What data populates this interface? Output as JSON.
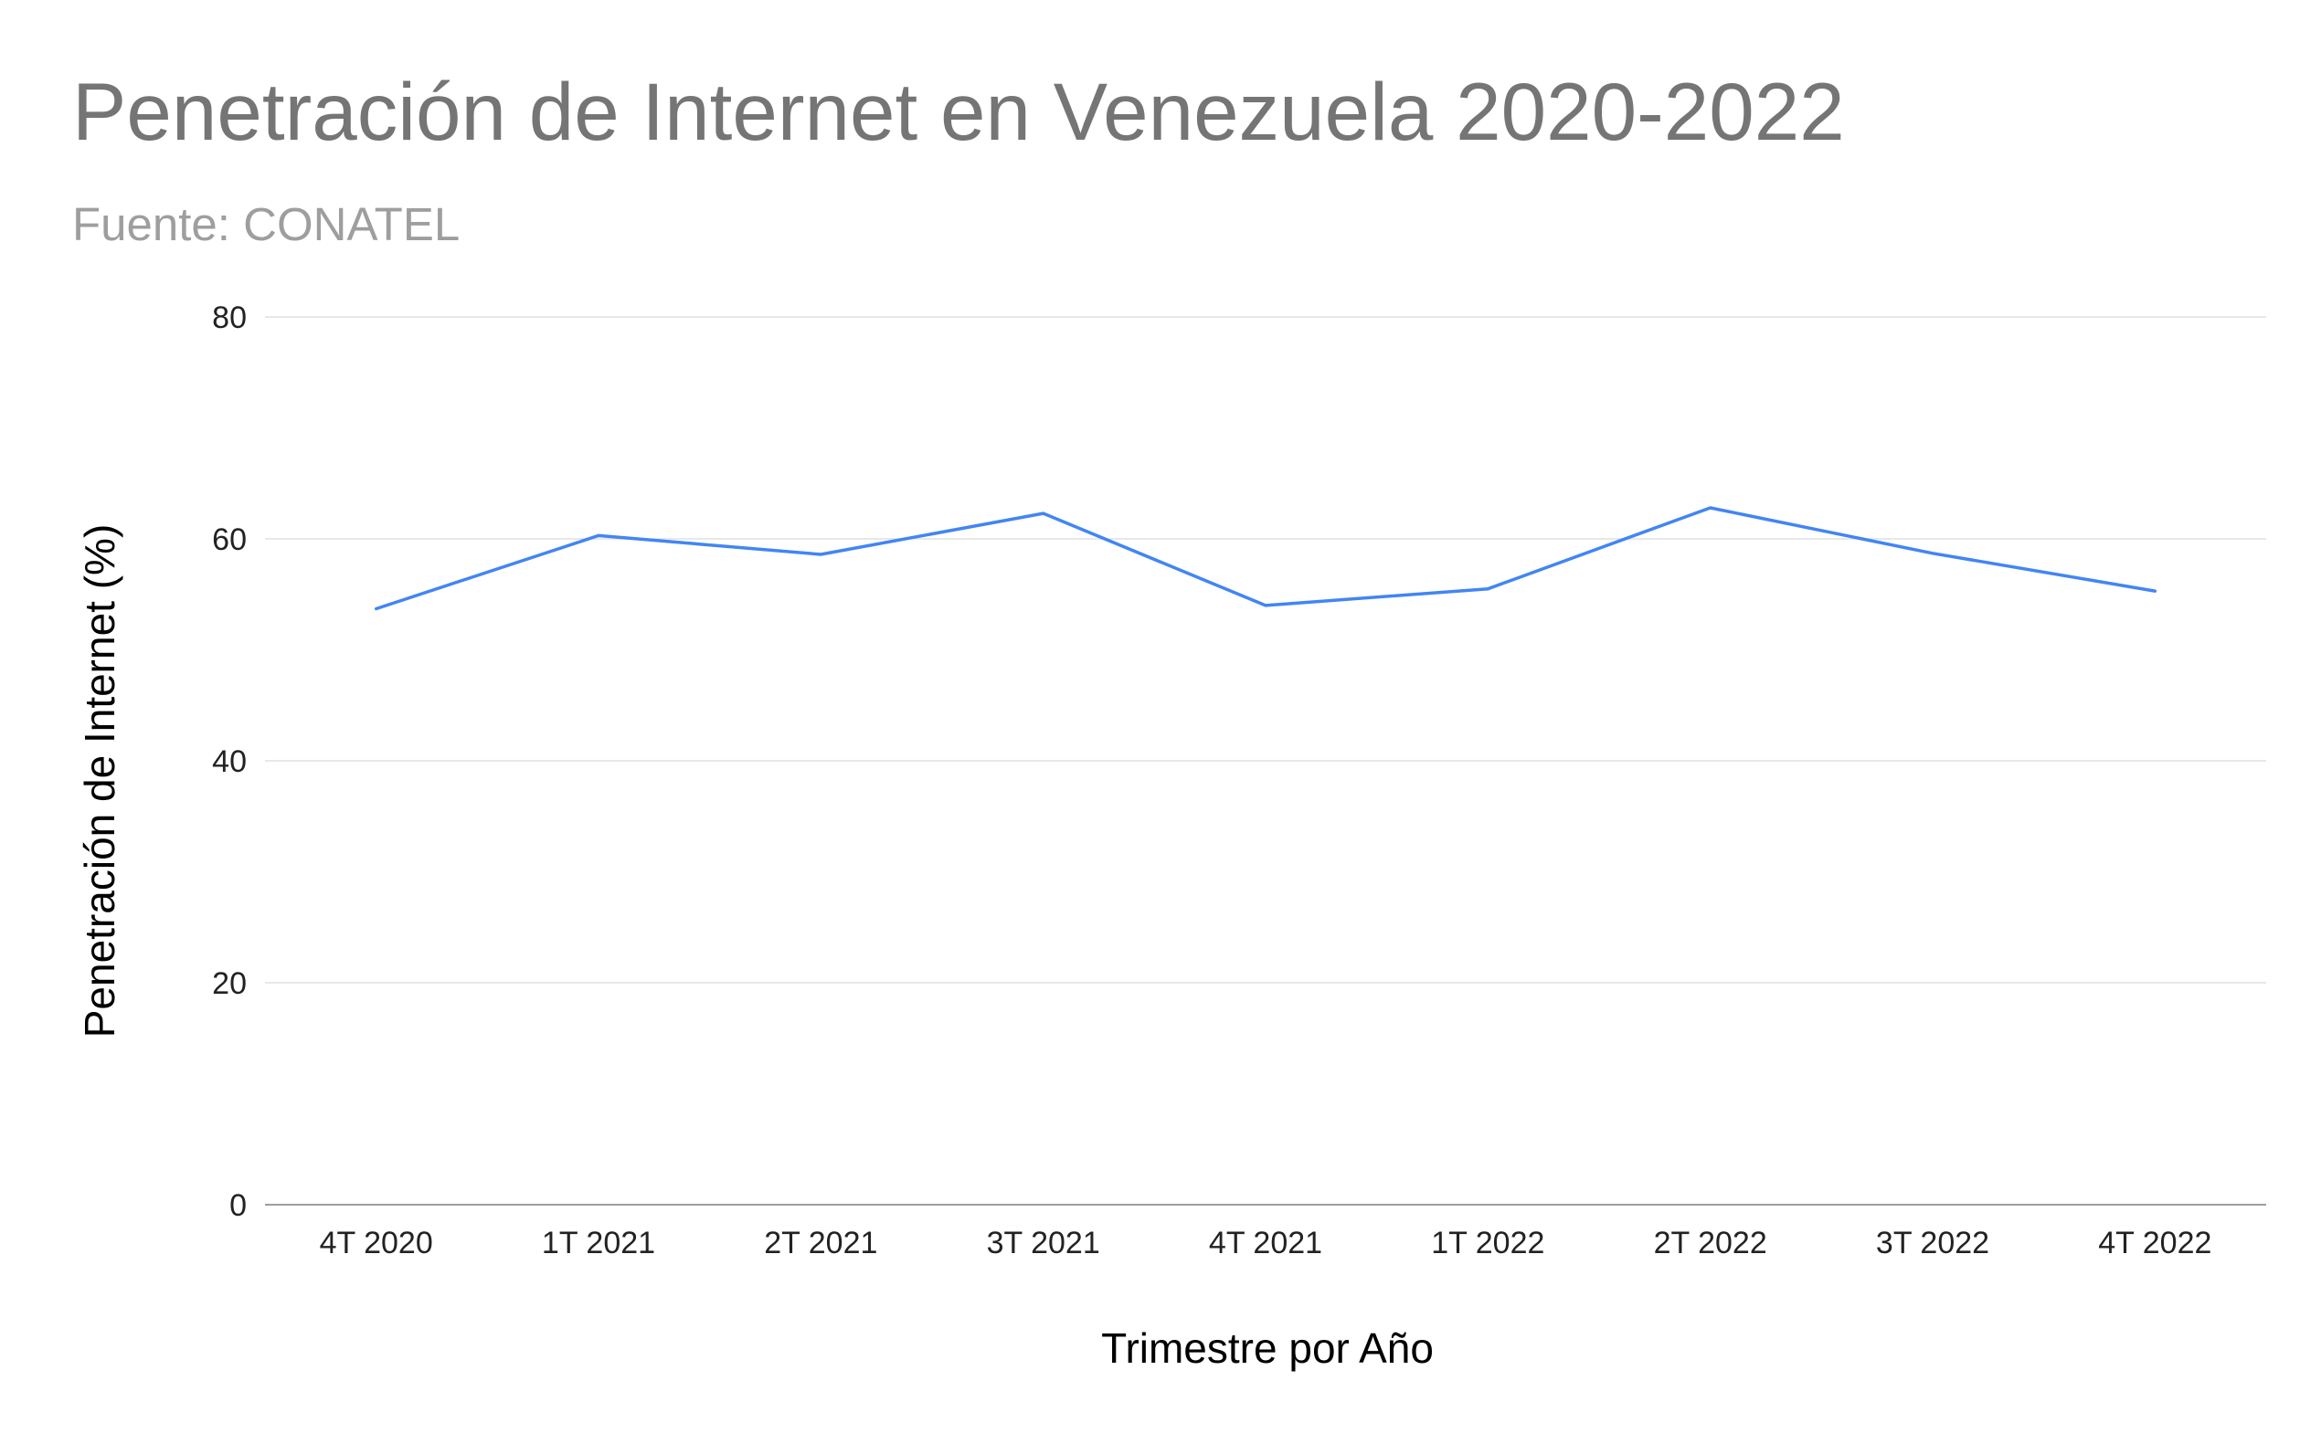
{
  "chart_data": {
    "type": "line",
    "title": "Penetración de Internet en Venezuela 2020-2022",
    "subtitle": "Fuente: CONATEL",
    "xlabel": "Trimestre por Año",
    "ylabel": "Penetración de Internet (%)",
    "categories": [
      "4T 2020",
      "1T 2021",
      "2T 2021",
      "3T 2021",
      "4T 2021",
      "1T 2022",
      "2T 2022",
      "3T 2022",
      "4T 2022"
    ],
    "series": [
      {
        "values": [
          53.7,
          60.3,
          58.6,
          62.3,
          54.0,
          55.5,
          62.8,
          58.7,
          55.3
        ],
        "color": "#4285f4"
      }
    ],
    "ylim": [
      0,
      80
    ],
    "yticks": [
      0,
      20,
      40,
      60,
      80
    ],
    "grid": true,
    "legend": "none",
    "colors": {
      "gridline": "#e0e0e0",
      "baseline": "#9e9e9e",
      "title": "#757575",
      "subtitle": "#9e9e9e"
    }
  }
}
